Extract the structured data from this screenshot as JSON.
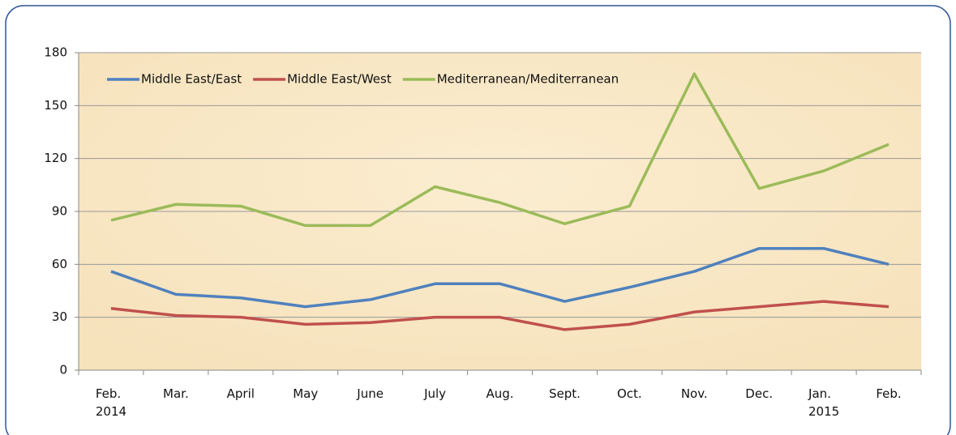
{
  "chart_data": {
    "type": "line",
    "categories": [
      "Feb.\n2014",
      "Mar.",
      "April",
      "May",
      "June",
      "July",
      "Aug.",
      "Sept.",
      "Oct.",
      "Nov.",
      "Dec.",
      "Jan.\n2015",
      "Feb."
    ],
    "series": [
      {
        "name": "Middle East/East",
        "color": "#4f81bd",
        "values": [
          56,
          43,
          41,
          36,
          40,
          49,
          49,
          39,
          47,
          56,
          69,
          69,
          60
        ]
      },
      {
        "name": "Middle East/West",
        "color": "#c0504d",
        "values": [
          35,
          31,
          30,
          26,
          27,
          30,
          30,
          23,
          26,
          33,
          36,
          39,
          36
        ]
      },
      {
        "name": "Mediterranean/Mediterranean",
        "color": "#9bbb59",
        "values": [
          85,
          94,
          93,
          82,
          82,
          104,
          95,
          83,
          93,
          168,
          103,
          113,
          128
        ]
      }
    ],
    "ylim": [
      0,
      180
    ],
    "yticks": [
      0,
      30,
      60,
      90,
      120,
      150,
      180
    ],
    "grid": true,
    "legend": "upper left"
  }
}
